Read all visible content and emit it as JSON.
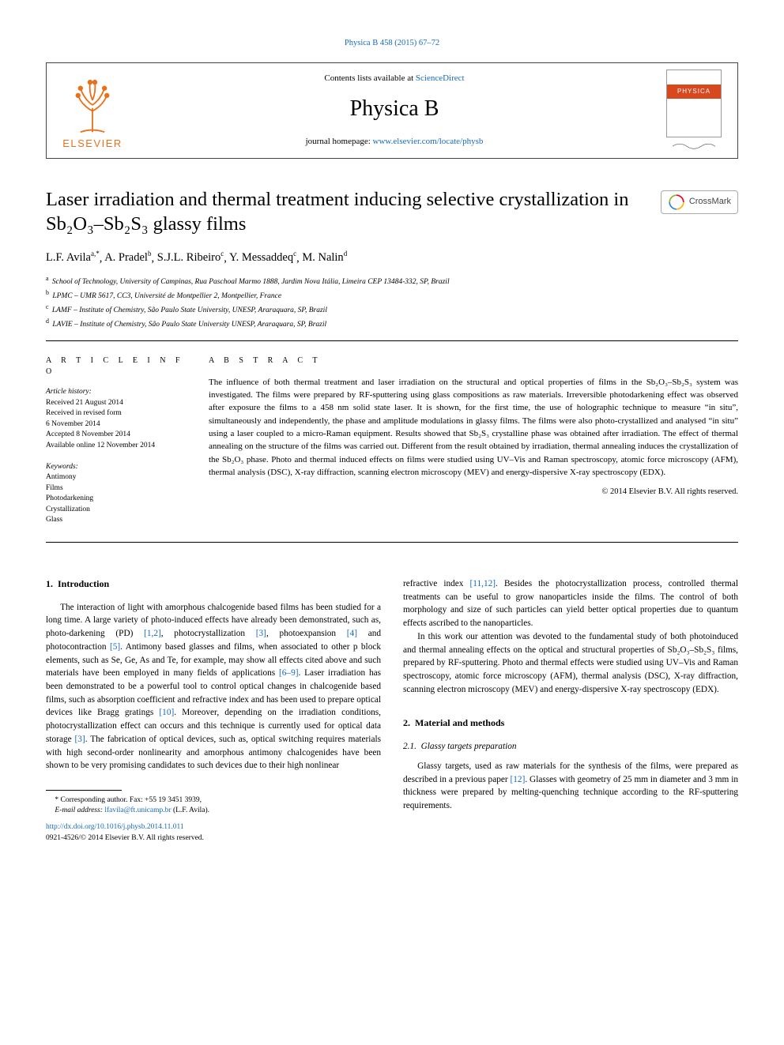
{
  "topLink": {
    "text": "Physica B 458 (2015) 67–72",
    "href": "#"
  },
  "header": {
    "publisher": "ELSEVIER",
    "contentsPrefix": "Contents lists available at ",
    "contentsLink": "ScienceDirect",
    "journal": "Physica B",
    "homepagePrefix": "journal homepage: ",
    "homepageLink": "www.elsevier.com/locate/physb",
    "coverBand": "PHYSICA"
  },
  "title": "Laser irradiation and thermal treatment inducing selective crystallization in Sb₂O₃–Sb₂S₃ glassy films",
  "crossmark": "CrossMark",
  "authors": [
    {
      "name": "L.F. Avila",
      "sup": "a,*"
    },
    {
      "name": "A. Pradel",
      "sup": "b"
    },
    {
      "name": "S.J.L. Ribeiro",
      "sup": "c"
    },
    {
      "name": "Y. Messaddeq",
      "sup": "c"
    },
    {
      "name": "M. Nalin",
      "sup": "d"
    }
  ],
  "affiliations": [
    {
      "sup": "a",
      "text": "School of Technology, University of Campinas, Rua Paschoal Marmo 1888, Jardim Nova Itália, Limeira CEP 13484-332, SP, Brazil"
    },
    {
      "sup": "b",
      "text": "LPMC – UMR 5617, CC3, Université de Montpellier 2, Montpellier, France"
    },
    {
      "sup": "c",
      "text": "LAMF – Institute of Chemistry, São Paulo State University, UNESP, Araraquara, SP, Brazil"
    },
    {
      "sup": "d",
      "text": "LAVIE – Institute of Chemistry, São Paulo State University UNESP, Araraquara, SP, Brazil"
    }
  ],
  "articleInfo": {
    "heading": "A R T I C L E  I N F O",
    "historyHead": "Article history:",
    "history": [
      "Received 21 August 2014",
      "Received in revised form",
      "6 November 2014",
      "Accepted 8 November 2014",
      "Available online 12 November 2014"
    ],
    "keywordsHead": "Keywords:",
    "keywords": [
      "Antimony",
      "Films",
      "Photodarkening",
      "Crystallization",
      "Glass"
    ]
  },
  "abstract": {
    "heading": "A B S T R A C T",
    "text": "The influence of both thermal treatment and laser irradiation on the structural and optical properties of films in the Sb₂O₃–Sb₂S₃ system was investigated. The films were prepared by RF-sputtering using glass compositions as raw materials. Irreversible photodarkening effect was observed after exposure the films to a 458 nm solid state laser. It is shown, for the first time, the use of holographic technique to measure “in situ”, simultaneously and independently, the phase and amplitude modulations in glassy films. The films were also photo-crystallized and analysed “in situ” using a laser coupled to a micro-Raman equipment. Results showed that Sb₂S₃ crystalline phase was obtained after irradiation. The effect of thermal annealing on the structure of the films was carried out. Different from the result obtained by irradiation, thermal annealing induces the crystallization of the Sb₂O₃ phase. Photo and thermal induced effects on films were studied using UV–Vis and Raman spectroscopy, atomic force microscopy (AFM), thermal analysis (DSC), X-ray diffraction, scanning electron microscopy (MEV) and energy-dispersive X-ray spectroscopy (EDX).",
    "copyright": "© 2014 Elsevier B.V. All rights reserved."
  },
  "sections": {
    "s1": {
      "num": "1.",
      "title": "Introduction"
    },
    "s2": {
      "num": "2.",
      "title": "Material and methods"
    },
    "s21": {
      "num": "2.1.",
      "title": "Glassy targets preparation"
    }
  },
  "body": {
    "p1a": "The interaction of light with amorphous chalcogenide based films has been studied for a long time. A large variety of photo-induced effects have already been demonstrated, such as, photo-darkening (PD) ",
    "r1": "[1,2]",
    "p1b": ", photocrystallization ",
    "r2": "[3]",
    "p1c": ", photoexpansion ",
    "r3": "[4]",
    "p1d": " and photocontraction ",
    "r4": "[5]",
    "p1e": ". Antimony based glasses and films, when associated to other p block elements, such as Se, Ge, As and Te, for example, may show all effects cited above and such materials have been employed in many fields of applications ",
    "r5": "[6–9]",
    "p1f": ". Laser irradiation has been demonstrated to be a powerful tool to control optical changes in chalcogenide based films, such as absorption coefficient and refractive index and has been used to prepare optical devices like Bragg gratings ",
    "r6": "[10]",
    "p1g": ". Moreover, depending on the irradiation conditions, photocrystallization effect can occurs and this technique is currently used for optical data storage ",
    "r7": "[3]",
    "p1h": ". The fabrication of optical devices, such as, optical switching requires materials with high second-order nonlinearity and amorphous antimony chalcogenides have been shown to be very promising candidates to such devices due to their high nonlinear",
    "p2a": "refractive index ",
    "r8": "[11,12]",
    "p2b": ". Besides the photocrystallization process, controlled thermal treatments can be useful to grow nanoparticles inside the films. The control of both morphology and size of such particles can yield better optical properties due to quantum effects ascribed to the nanoparticles.",
    "p3": "In this work our attention was devoted to the fundamental study of both photoinduced and thermal annealing effects on the optical and structural properties of Sb₂O₃–Sb₂S₃ films, prepared by RF-sputtering. Photo and thermal effects were studied using UV–Vis and Raman spectroscopy, atomic force microscopy (AFM), thermal analysis (DSC), X-ray diffraction, scanning electron microscopy (MEV) and energy-dispersive X-ray spectroscopy (EDX).",
    "p4a": "Glassy targets, used as raw materials for the synthesis of the films, were prepared as described in a previous paper ",
    "r9": "[12]",
    "p4b": ". Glasses with geometry of 25 mm in diameter and 3 mm in thickness were prepared by melting-quenching technique according to the RF-sputtering requirements."
  },
  "footnote": {
    "corr": "* Corresponding author. Fax: +55 19 3451 3939,",
    "emailLabel": "E-mail address: ",
    "email": "lfavila@ft.unicamp.br",
    "emailSuffix": " (L.F. Avila).",
    "doi": "http://dx.doi.org/10.1016/j.physb.2014.11.011",
    "issn": "0921-4526/© 2014 Elsevier B.V. All rights reserved."
  },
  "colors": {
    "link": "#1669c0",
    "elsevier": "#e8711c",
    "coverBand": "#d8481e"
  }
}
